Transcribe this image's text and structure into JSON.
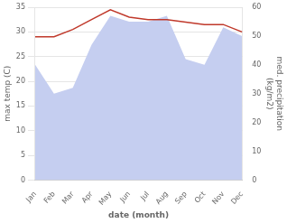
{
  "chart_data": {
    "type": "line",
    "categories": [
      "Jan",
      "Feb",
      "Mar",
      "Apr",
      "May",
      "Jun",
      "Jul",
      "Aug",
      "Sep",
      "Oct",
      "Nov",
      "Dec"
    ],
    "series": [
      {
        "type": "line",
        "color": "#c0392b",
        "values": [
          29.0,
          29.0,
          30.5,
          32.5,
          34.5,
          33.0,
          32.5,
          32.5,
          32.0,
          31.5,
          31.5,
          30.0
        ]
      },
      {
        "type": "area",
        "axis": "y2",
        "color": "#c5cef0",
        "values": [
          40,
          30,
          32,
          47,
          57,
          55,
          55,
          57,
          42,
          40,
          53,
          50
        ]
      }
    ],
    "x_label": "date (month)",
    "y_label": "max temp (C)",
    "y2_label": "med. precipitation\n(kg/m2)",
    "ylim": [
      0,
      35
    ],
    "yticks": [
      0,
      5,
      10,
      15,
      20,
      25,
      30,
      35
    ],
    "y2lim": [
      0,
      60
    ],
    "y2ticks": [
      0,
      10,
      20,
      30,
      40,
      50,
      60
    ],
    "grid": true
  }
}
